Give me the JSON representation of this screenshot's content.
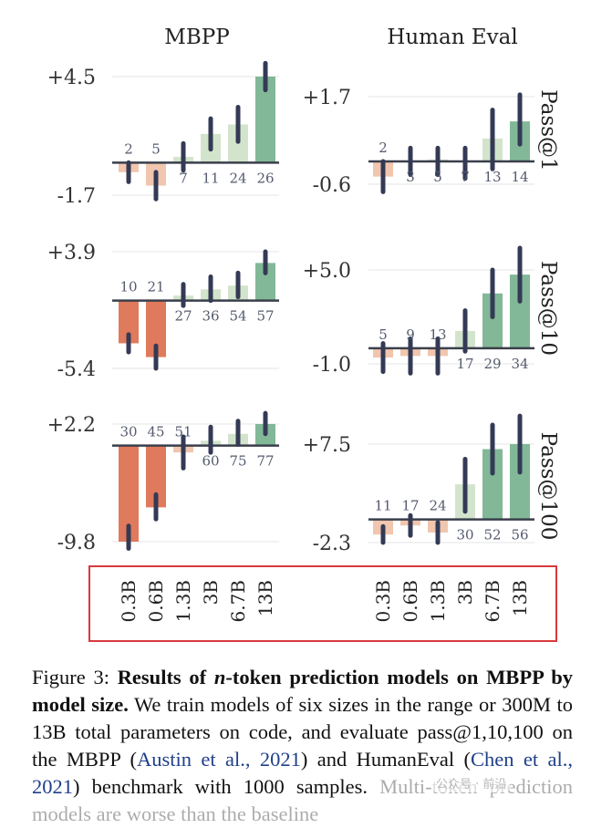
{
  "figure": {
    "columns": [
      "MBPP",
      "Human Eval"
    ],
    "rows": [
      "Pass@1",
      "Pass@10",
      "Pass@100"
    ],
    "model_sizes": [
      "0.3B",
      "0.6B",
      "1.3B",
      "3B",
      "6.7B",
      "13B"
    ]
  },
  "chart_data": [
    {
      "type": "bar",
      "column": "MBPP",
      "row": "Pass@1",
      "categories": [
        "0.3B",
        "0.6B",
        "1.3B",
        "3B",
        "6.7B",
        "13B"
      ],
      "values": [
        -0.5,
        -1.2,
        0.3,
        1.5,
        2.0,
        4.5
      ],
      "ci_low": [
        -1.0,
        -1.9,
        -0.4,
        0.7,
        1.1,
        3.8
      ],
      "ci_high": [
        0.0,
        -0.5,
        1.0,
        2.3,
        2.9,
        5.2
      ],
      "bar_labels": [
        "2",
        "5",
        "7",
        "11",
        "24",
        "26"
      ],
      "ytick_labels": [
        "+4.5",
        "-1.7"
      ],
      "ylim": [
        -1.7,
        4.5
      ]
    },
    {
      "type": "bar",
      "column": "Human Eval",
      "row": "Pass@1",
      "categories": [
        "0.3B",
        "0.6B",
        "1.3B",
        "3B",
        "6.7B",
        "13B"
      ],
      "values": [
        -0.4,
        0.0,
        0.05,
        0.0,
        0.6,
        1.05
      ],
      "ci_low": [
        -0.8,
        -0.35,
        -0.35,
        -0.45,
        -0.2,
        0.45
      ],
      "ci_high": [
        0.0,
        0.35,
        0.35,
        0.35,
        1.35,
        1.75
      ],
      "bar_labels": [
        "2",
        "3",
        "5",
        "7",
        "13",
        "14"
      ],
      "ytick_labels": [
        "+1.7",
        "-0.6"
      ],
      "ylim": [
        -0.6,
        1.7
      ]
    },
    {
      "type": "bar",
      "column": "MBPP",
      "row": "Pass@10",
      "categories": [
        "0.3B",
        "0.6B",
        "1.3B",
        "3B",
        "6.7B",
        "13B"
      ],
      "values": [
        -3.4,
        -4.5,
        0.4,
        0.9,
        1.2,
        3.0
      ],
      "ci_low": [
        -4.1,
        -5.4,
        -0.4,
        0.0,
        0.3,
        2.2
      ],
      "ci_high": [
        -2.7,
        -3.6,
        1.3,
        1.9,
        2.2,
        3.9
      ],
      "bar_labels": [
        "10",
        "21",
        "27",
        "36",
        "54",
        "57"
      ],
      "ytick_labels": [
        "+3.9",
        "-5.4"
      ],
      "ylim": [
        -5.4,
        3.9
      ]
    },
    {
      "type": "bar",
      "column": "Human Eval",
      "row": "Pass@10",
      "categories": [
        "0.3B",
        "0.6B",
        "1.3B",
        "3B",
        "6.7B",
        "13B"
      ],
      "values": [
        -0.6,
        -0.5,
        -0.5,
        1.1,
        3.5,
        4.7
      ],
      "ci_low": [
        -1.5,
        -1.6,
        -1.6,
        -0.2,
        2.0,
        3.0
      ],
      "ci_high": [
        0.3,
        0.6,
        0.6,
        2.4,
        5.0,
        6.4
      ],
      "bar_labels": [
        "5",
        "9",
        "13",
        "17",
        "29",
        "34"
      ],
      "ytick_labels": [
        "+5.0",
        "-1.0"
      ],
      "ylim": [
        -1.0,
        5.0
      ]
    },
    {
      "type": "bar",
      "column": "MBPP",
      "row": "Pass@100",
      "categories": [
        "0.3B",
        "0.6B",
        "1.3B",
        "3B",
        "6.7B",
        "13B"
      ],
      "values": [
        -9.8,
        -6.3,
        -0.7,
        0.5,
        1.2,
        2.2
      ],
      "ci_low": [
        -10.5,
        -7.5,
        -2.3,
        -0.7,
        0.1,
        1.2
      ],
      "ci_high": [
        -8.2,
        -5.0,
        0.9,
        1.9,
        2.5,
        3.3
      ],
      "bar_labels": [
        "30",
        "45",
        "51",
        "60",
        "75",
        "77"
      ],
      "ytick_labels": [
        "+2.2",
        "-9.8"
      ],
      "ylim": [
        -9.8,
        2.2
      ]
    },
    {
      "type": "bar",
      "column": "Human Eval",
      "row": "Pass@100",
      "categories": [
        "0.3B",
        "0.6B",
        "1.3B",
        "3B",
        "6.7B",
        "13B"
      ],
      "values": [
        -1.5,
        -0.6,
        -1.3,
        3.5,
        7.0,
        7.5
      ],
      "ci_low": [
        -2.3,
        -1.6,
        -2.3,
        0.8,
        4.6,
        4.7
      ],
      "ci_high": [
        -0.7,
        0.4,
        -0.3,
        6.0,
        9.4,
        10.3
      ],
      "bar_labels": [
        "11",
        "17",
        "24",
        "30",
        "52",
        "56"
      ],
      "ytick_labels": [
        "+7.5",
        "-2.3"
      ],
      "ylim": [
        -2.3,
        7.5
      ]
    }
  ],
  "colors": {
    "neg_strong": "#e07a5c",
    "neg_light": "#f1c6ae",
    "pos_strong": "#82b897",
    "pos_light": "#d3e4cc",
    "axis": "#3a3f4b",
    "errorbar": "#343a55",
    "grid": "#eeeeee",
    "tick_text": "#333333",
    "bar_label": "#555b6e"
  },
  "caption": {
    "label": "Figure 3:",
    "bold_lead": "Results of",
    "bold_n": "n",
    "bold_rest": "-token prediction models on MBPP by model size.",
    "text1": "We train models of six sizes in the range or 300M to 13B total parameters on code, and evaluate pass@1,10,100 on the MBPP (",
    "cite1": "Austin et al., 2021",
    "text2": ") and HumanEval (",
    "cite2": "Chen et al., 2021",
    "text3": ") benchmark with 1000 samples.",
    "text4": "Multi-token prediction models are worse than the baseline"
  },
  "watermark": "公众号 · 前沿"
}
